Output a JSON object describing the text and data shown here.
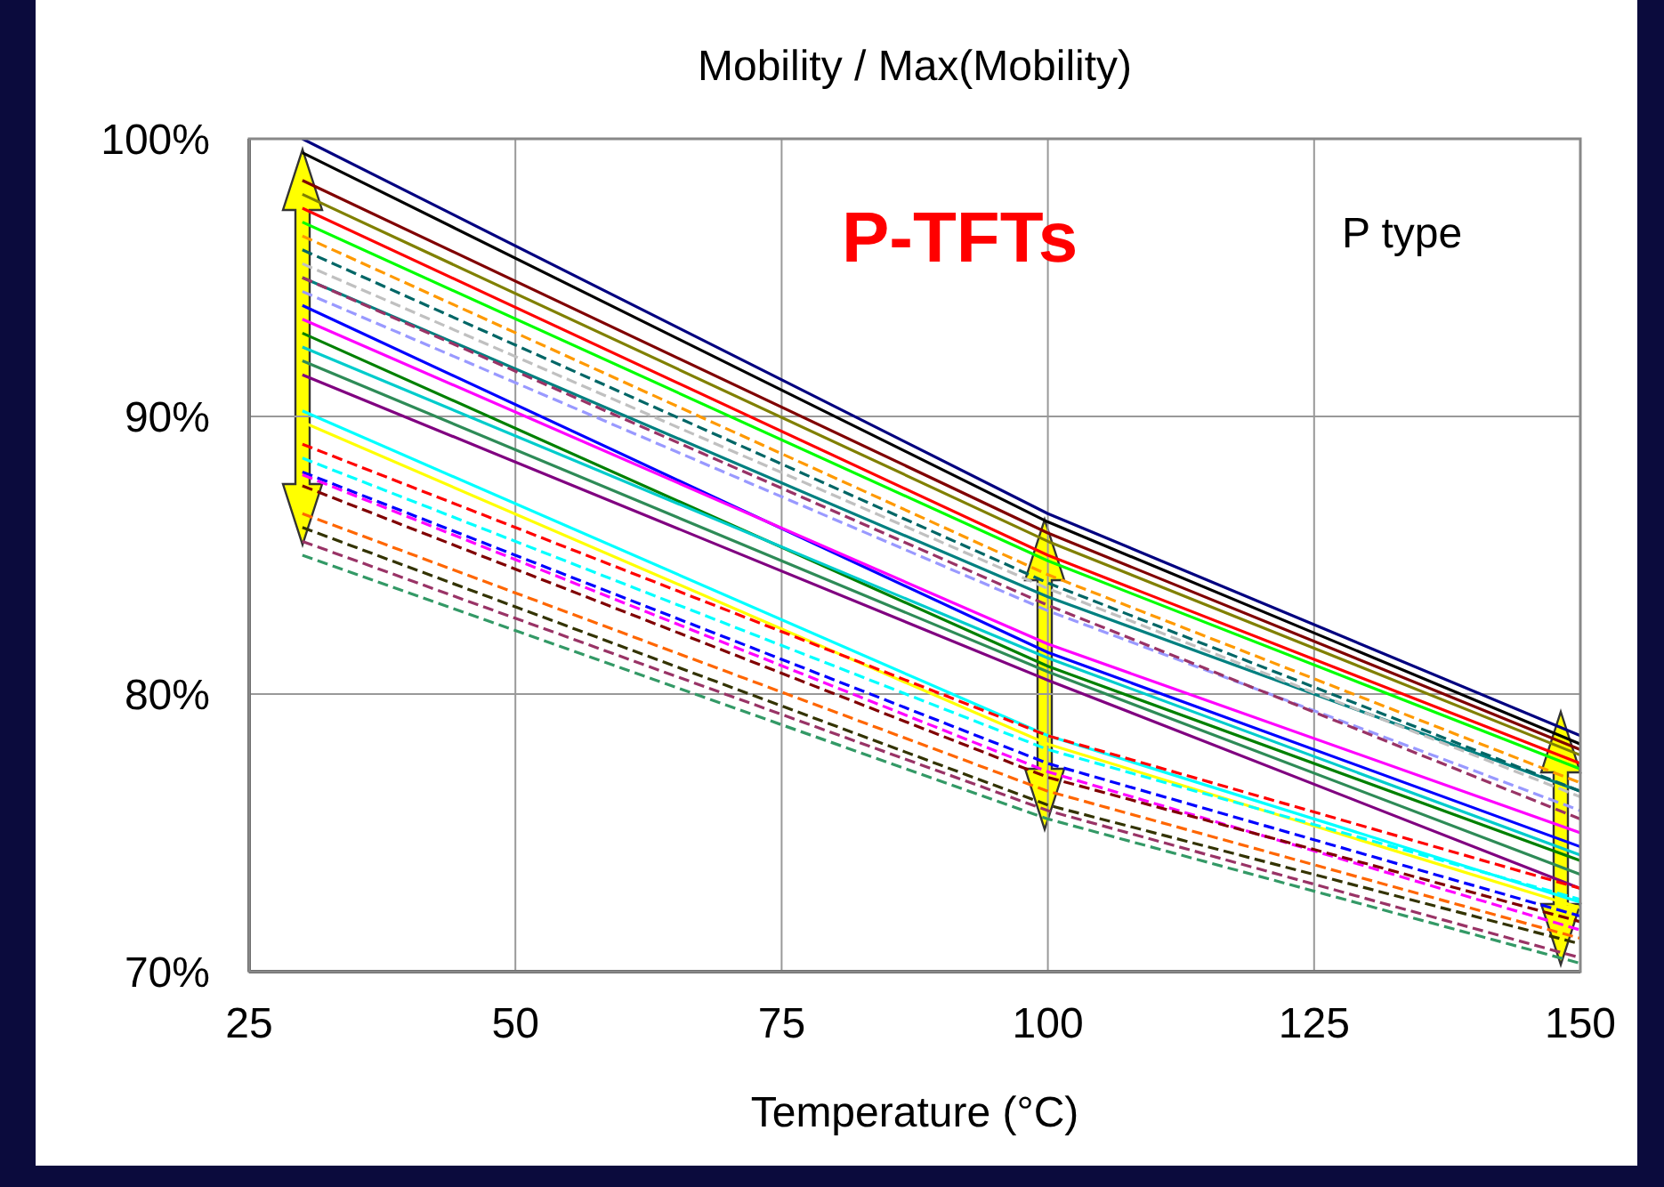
{
  "chart_data": {
    "type": "line",
    "title": "Mobility / Max(Mobility)",
    "xlabel": "Temperature (°C)",
    "annotations": [
      "P-TFTs",
      "P type"
    ],
    "x": [
      30,
      100,
      150
    ],
    "xlim": [
      25,
      150
    ],
    "xticks": [
      25,
      50,
      75,
      100,
      125,
      150
    ],
    "ylim": [
      70,
      100
    ],
    "yticks": [
      {
        "value": 70,
        "label": "70%"
      },
      {
        "value": 80,
        "label": "80%"
      },
      {
        "value": 90,
        "label": "90%"
      },
      {
        "value": 100,
        "label": "100%"
      }
    ],
    "grid": true,
    "series": [
      {
        "color": "#000080",
        "values": [
          100,
          86.5,
          78.5
        ],
        "line_style": "solid"
      },
      {
        "color": "#000000",
        "values": [
          99.5,
          86.2,
          78.2
        ],
        "line_style": "solid"
      },
      {
        "color": "#800000",
        "values": [
          98.5,
          85.8,
          78
        ],
        "line_style": "solid"
      },
      {
        "color": "#808000",
        "values": [
          98,
          85.5,
          77.8
        ],
        "line_style": "solid"
      },
      {
        "color": "#ff0000",
        "values": [
          97.5,
          85,
          77.5
        ],
        "line_style": "solid"
      },
      {
        "color": "#00ff00",
        "values": [
          97,
          84.8,
          77.3
        ],
        "line_style": "solid"
      },
      {
        "color": "#008080",
        "values": [
          95,
          83.5,
          76.5
        ],
        "line_style": "solid"
      },
      {
        "color": "#0000ff",
        "values": [
          94,
          81.5,
          74.5
        ],
        "line_style": "solid"
      },
      {
        "color": "#ff00ff",
        "values": [
          93.5,
          81.8,
          75
        ],
        "line_style": "solid"
      },
      {
        "color": "#008000",
        "values": [
          93,
          81,
          74
        ],
        "line_style": "solid"
      },
      {
        "color": "#00cccc",
        "values": [
          92.5,
          81.3,
          74.2
        ],
        "line_style": "solid"
      },
      {
        "color": "#800080",
        "values": [
          91.5,
          80.5,
          73
        ],
        "line_style": "solid"
      },
      {
        "color": "#2e8b57",
        "values": [
          92,
          80.8,
          73.5
        ],
        "line_style": "solid"
      },
      {
        "color": "#00ffff",
        "values": [
          90.2,
          78.5,
          72.5
        ],
        "line_style": "solid"
      },
      {
        "color": "#ffff00",
        "values": [
          89.8,
          78.2,
          72.3
        ],
        "line_style": "solid"
      },
      {
        "color": "#006666",
        "values": [
          96,
          84,
          76.5
        ],
        "line_style": "dashed"
      },
      {
        "color": "#c0c0c0",
        "values": [
          95.5,
          83.8,
          76.3
        ],
        "line_style": "dashed"
      },
      {
        "color": "#ff9900",
        "values": [
          96.5,
          84.3,
          76.8
        ],
        "line_style": "dashed"
      },
      {
        "color": "#9999ff",
        "values": [
          94.5,
          83,
          75.8
        ],
        "line_style": "dashed"
      },
      {
        "color": "#993366",
        "values": [
          95,
          83.2,
          75.5
        ],
        "line_style": "dashed"
      },
      {
        "color": "#ff0000",
        "values": [
          89,
          78.5,
          73
        ],
        "line_style": "dashed"
      },
      {
        "color": "#00ffff",
        "values": [
          88.5,
          78,
          72.6
        ],
        "line_style": "dashed"
      },
      {
        "color": "#0000ff",
        "values": [
          88,
          77.5,
          72
        ],
        "line_style": "dashed"
      },
      {
        "color": "#ff00ff",
        "values": [
          87.9,
          77.2,
          71.5
        ],
        "line_style": "dashed"
      },
      {
        "color": "#800000",
        "values": [
          87.5,
          77,
          71.8
        ],
        "line_style": "dashed"
      },
      {
        "color": "#ff6600",
        "values": [
          86.5,
          76.5,
          71.2
        ],
        "line_style": "dashed"
      },
      {
        "color": "#333300",
        "values": [
          86,
          76,
          71
        ],
        "line_style": "dashed"
      },
      {
        "color": "#993366",
        "values": [
          85.5,
          75.8,
          70.5
        ],
        "line_style": "dashed"
      },
      {
        "color": "#339966",
        "values": [
          85,
          75.5,
          70.3
        ],
        "line_style": "dashed"
      }
    ]
  }
}
